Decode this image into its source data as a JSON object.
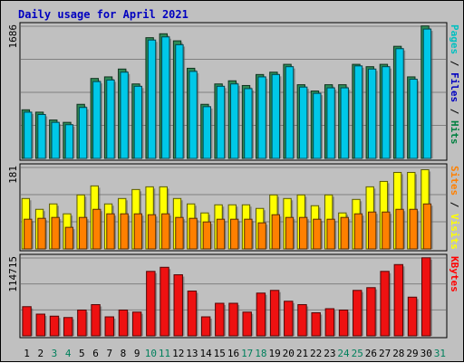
{
  "title": "Daily usage for April 2021",
  "chart_data": [
    {
      "type": "bar",
      "panel": "hits-files-pages",
      "ymax_label": "1686",
      "ylim": [
        0,
        1686
      ],
      "legend": [
        {
          "text": "Pages",
          "color": "#00C0C0"
        },
        {
          "text": " / ",
          "color": "#000000"
        },
        {
          "text": "Files",
          "color": "#0000C0"
        },
        {
          "text": " / ",
          "color": "#000000"
        },
        {
          "text": "Hits",
          "color": "#008040"
        }
      ],
      "categories": [
        "1",
        "2",
        "3",
        "4",
        "5",
        "6",
        "7",
        "8",
        "9",
        "10",
        "11",
        "12",
        "13",
        "14",
        "15",
        "16",
        "17",
        "18",
        "19",
        "20",
        "21",
        "22",
        "23",
        "24",
        "25",
        "26",
        "27",
        "28",
        "29",
        "30",
        "31"
      ],
      "series": [
        {
          "name": "Hits",
          "color": "#2E8B57",
          "values": [
            620,
            590,
            490,
            460,
            690,
            1020,
            1040,
            1140,
            950,
            1540,
            1590,
            1500,
            1150,
            690,
            950,
            990,
            930,
            1070,
            1100,
            1200,
            940,
            860,
            940,
            940,
            1200,
            1170,
            1200,
            1430,
            1040,
            1690,
            0
          ]
        },
        {
          "name": "Files",
          "color": "#00C8E8",
          "values": [
            590,
            560,
            460,
            430,
            650,
            980,
            1000,
            1100,
            920,
            1510,
            1550,
            1450,
            1110,
            660,
            920,
            950,
            890,
            1040,
            1070,
            1170,
            910,
            830,
            900,
            900,
            1180,
            1140,
            1170,
            1400,
            1010,
            1650,
            0
          ]
        }
      ],
      "grid": true
    },
    {
      "type": "bar",
      "panel": "visits-sites",
      "ymax_label": "181",
      "ylim": [
        0,
        181
      ],
      "legend": [
        {
          "text": "Sites",
          "color": "#FF8000"
        },
        {
          "text": " / ",
          "color": "#000000"
        },
        {
          "text": "Visits",
          "color": "#FFFF00"
        }
      ],
      "categories": [
        "1",
        "2",
        "3",
        "4",
        "5",
        "6",
        "7",
        "8",
        "9",
        "10",
        "11",
        "12",
        "13",
        "14",
        "15",
        "16",
        "17",
        "18",
        "19",
        "20",
        "21",
        "22",
        "23",
        "24",
        "25",
        "26",
        "27",
        "28",
        "29",
        "30",
        "31"
      ],
      "series": [
        {
          "name": "Visits",
          "color": "#FFFF00",
          "values": [
            112,
            88,
            100,
            78,
            120,
            140,
            100,
            112,
            132,
            138,
            138,
            112,
            100,
            80,
            98,
            98,
            98,
            90,
            120,
            112,
            120,
            96,
            120,
            80,
            110,
            138,
            150,
            170,
            170,
            176,
            0
          ]
        },
        {
          "name": "Sites",
          "color": "#FF8000",
          "values": [
            66,
            68,
            70,
            48,
            70,
            88,
            78,
            78,
            78,
            76,
            78,
            70,
            68,
            60,
            66,
            66,
            66,
            58,
            76,
            70,
            70,
            66,
            66,
            70,
            78,
            82,
            82,
            88,
            88,
            100,
            0
          ]
        }
      ],
      "grid": true
    },
    {
      "type": "bar",
      "panel": "kbytes",
      "ymax_label": "114715",
      "ylim": [
        0,
        114715
      ],
      "legend": [
        {
          "text": "KBytes",
          "color": "#FF0000"
        }
      ],
      "categories": [
        "1",
        "2",
        "3",
        "4",
        "5",
        "6",
        "7",
        "8",
        "9",
        "10",
        "11",
        "12",
        "13",
        "14",
        "15",
        "16",
        "17",
        "18",
        "19",
        "20",
        "21",
        "22",
        "23",
        "24",
        "25",
        "26",
        "27",
        "28",
        "29",
        "30",
        "31"
      ],
      "series": [
        {
          "name": "KBytes",
          "color": "#EE1111",
          "values": [
            43000,
            32000,
            29000,
            27000,
            38000,
            46000,
            28000,
            38000,
            35000,
            95000,
            101000,
            90000,
            66000,
            28000,
            48000,
            48000,
            35000,
            63000,
            67000,
            51000,
            46000,
            34000,
            40000,
            38000,
            67000,
            71000,
            95000,
            105000,
            57000,
            115000,
            0
          ]
        }
      ],
      "grid": true
    }
  ],
  "xaxis": {
    "days": [
      {
        "label": "1",
        "weekend": false
      },
      {
        "label": "2",
        "weekend": false
      },
      {
        "label": "3",
        "weekend": true
      },
      {
        "label": "4",
        "weekend": true
      },
      {
        "label": "5",
        "weekend": false
      },
      {
        "label": "6",
        "weekend": false
      },
      {
        "label": "7",
        "weekend": false
      },
      {
        "label": "8",
        "weekend": false
      },
      {
        "label": "9",
        "weekend": false
      },
      {
        "label": "10",
        "weekend": true
      },
      {
        "label": "11",
        "weekend": true
      },
      {
        "label": "12",
        "weekend": false
      },
      {
        "label": "13",
        "weekend": false
      },
      {
        "label": "14",
        "weekend": false
      },
      {
        "label": "15",
        "weekend": false
      },
      {
        "label": "16",
        "weekend": false
      },
      {
        "label": "17",
        "weekend": true
      },
      {
        "label": "18",
        "weekend": true
      },
      {
        "label": "19",
        "weekend": false
      },
      {
        "label": "20",
        "weekend": false
      },
      {
        "label": "21",
        "weekend": false
      },
      {
        "label": "22",
        "weekend": false
      },
      {
        "label": "23",
        "weekend": false
      },
      {
        "label": "24",
        "weekend": true
      },
      {
        "label": "25",
        "weekend": true
      },
      {
        "label": "26",
        "weekend": false
      },
      {
        "label": "27",
        "weekend": false
      },
      {
        "label": "28",
        "weekend": false
      },
      {
        "label": "29",
        "weekend": false
      },
      {
        "label": "30",
        "weekend": false
      },
      {
        "label": "31",
        "weekend": true
      }
    ],
    "weekday_color": "#000000",
    "weekend_color": "#00805C"
  },
  "colors": {
    "background": "#C0C0C0",
    "title": "#0000C0",
    "grid": "#808080"
  }
}
